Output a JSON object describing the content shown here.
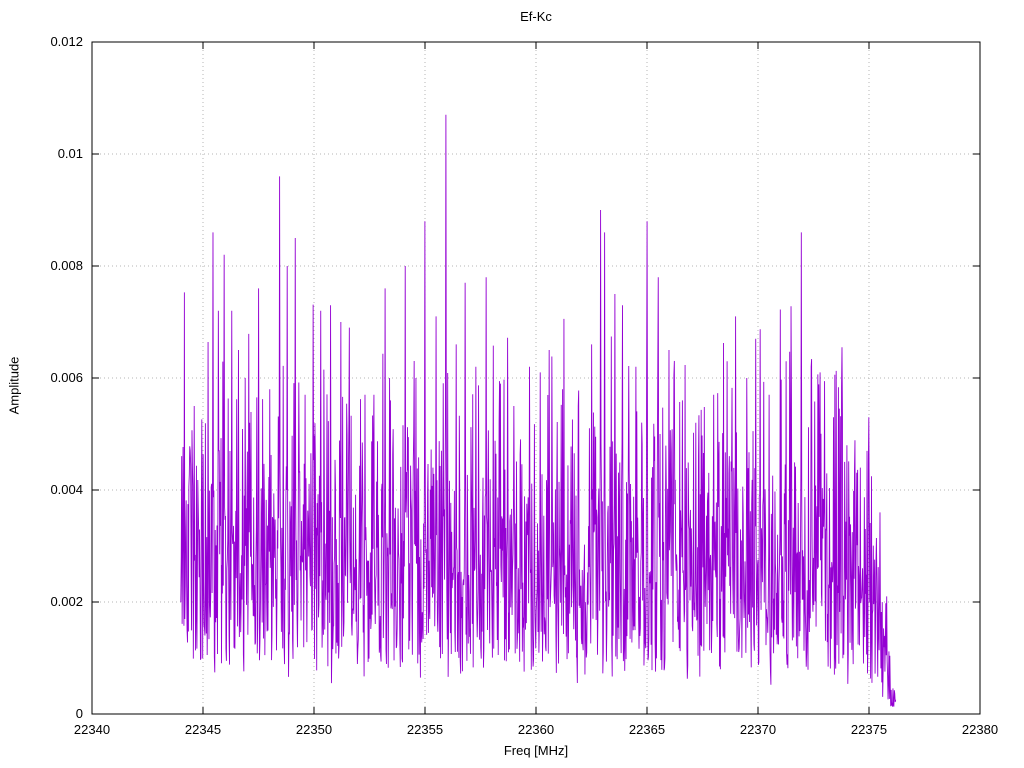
{
  "chart_data": {
    "type": "line",
    "title": "Ef-Kc",
    "xlabel": "Freq [MHz]",
    "ylabel": "Amplitude",
    "xlim": [
      22340,
      22380
    ],
    "ylim": [
      0,
      0.012
    ],
    "xticks": [
      22340,
      22345,
      22350,
      22355,
      22360,
      22365,
      22370,
      22375,
      22380
    ],
    "xtick_labels": [
      "22340",
      "22345",
      "22350",
      "22355",
      "22360",
      "22365",
      "22370",
      "22375",
      "22380"
    ],
    "yticks": [
      0,
      0.002,
      0.004,
      0.006,
      0.008,
      0.01,
      0.012
    ],
    "ytick_labels": [
      "0",
      "0.002",
      "0.004",
      "0.006",
      "0.008",
      "0.01",
      "0.012"
    ],
    "grid": true,
    "legend": "none",
    "line_color": "#9400d3",
    "grid_color": "#b5b5b5",
    "axis_color": "#000000",
    "signal": {
      "description": "dense noisy amplitude spectrum occupying 22344-22376 MHz, baseline noise ~0.0005-0.006 with sharp spikes; tallest spike 0.0107 near 22356 MHz; level falls off below 0.002 after 22375 MHz",
      "x_start": 22344.0,
      "x_end": 22376.2,
      "points": 1600,
      "seed": 20231107,
      "noise_base": 0.0005,
      "noise_spread": 0.0023,
      "noise_jitter": 0.0006,
      "peaks": [
        [
          22344.4,
          0.0042
        ],
        [
          22344.6,
          0.0055
        ],
        [
          22345.45,
          0.0086
        ],
        [
          22345.7,
          0.0072
        ],
        [
          22345.95,
          0.0082
        ],
        [
          22346.3,
          0.0072
        ],
        [
          22346.6,
          0.0065
        ],
        [
          22347.1,
          0.0052
        ],
        [
          22347.5,
          0.0076
        ],
        [
          22348.0,
          0.0058
        ],
        [
          22348.45,
          0.0096
        ],
        [
          22348.8,
          0.008
        ],
        [
          22349.15,
          0.0085
        ],
        [
          22349.6,
          0.0057
        ],
        [
          22350.3,
          0.0072
        ],
        [
          22350.75,
          0.0073
        ],
        [
          22351.2,
          0.007
        ],
        [
          22351.6,
          0.0069
        ],
        [
          22352.3,
          0.0057
        ],
        [
          22352.7,
          0.0057
        ],
        [
          22353.2,
          0.0076
        ],
        [
          22354.1,
          0.008
        ],
        [
          22354.6,
          0.006
        ],
        [
          22355.0,
          0.0088
        ],
        [
          22355.5,
          0.0071
        ],
        [
          22355.95,
          0.0107
        ],
        [
          22356.4,
          0.0066
        ],
        [
          22356.8,
          0.0077
        ],
        [
          22357.3,
          0.0062
        ],
        [
          22357.75,
          0.0078
        ],
        [
          22358.4,
          0.0059
        ],
        [
          22359.0,
          0.0055
        ],
        [
          22359.7,
          0.0062
        ],
        [
          22360.2,
          0.0061
        ],
        [
          22360.6,
          0.0065
        ],
        [
          22361.2,
          0.0058
        ],
        [
          22361.9,
          0.0055
        ],
        [
          22362.5,
          0.0066
        ],
        [
          22362.9,
          0.009
        ],
        [
          22363.1,
          0.0086
        ],
        [
          22363.55,
          0.0075
        ],
        [
          22363.9,
          0.0073
        ],
        [
          22364.5,
          0.0062
        ],
        [
          22365.0,
          0.0088
        ],
        [
          22365.5,
          0.0078
        ],
        [
          22366.0,
          0.0065
        ],
        [
          22366.6,
          0.0056
        ],
        [
          22367.2,
          0.0052
        ],
        [
          22368.0,
          0.0057
        ],
        [
          22368.6,
          0.0063
        ],
        [
          22369.0,
          0.0071
        ],
        [
          22369.5,
          0.006
        ],
        [
          22369.9,
          0.0067
        ],
        [
          22370.5,
          0.0057
        ],
        [
          22371.0,
          0.0063
        ],
        [
          22371.5,
          0.0056
        ],
        [
          22371.95,
          0.0086
        ],
        [
          22372.4,
          0.0062
        ],
        [
          22372.8,
          0.0061
        ],
        [
          22373.4,
          0.0053
        ],
        [
          22374.0,
          0.0048
        ],
        [
          22374.6,
          0.0044
        ],
        [
          22375.0,
          0.0053
        ],
        [
          22375.5,
          0.0036
        ],
        [
          22375.8,
          0.0021
        ]
      ]
    }
  }
}
